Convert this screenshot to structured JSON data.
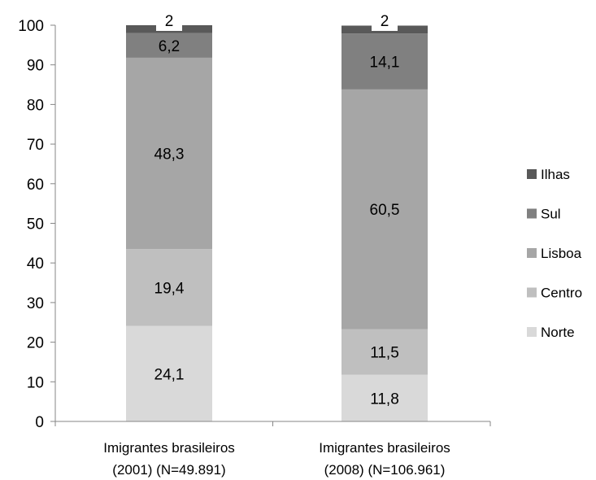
{
  "chart_data": {
    "type": "bar",
    "stacked": true,
    "categories": [
      [
        "Imigrantes brasileiros",
        "(2001) (N=49.891)"
      ],
      [
        "Imigrantes brasileiros",
        "(2008) (N=106.961)"
      ]
    ],
    "series": [
      {
        "name": "Norte",
        "color": "#d9d9d9",
        "values": [
          24.1,
          11.8
        ],
        "labels": [
          "24,1",
          "11,8"
        ]
      },
      {
        "name": "Centro",
        "color": "#bfbfbf",
        "values": [
          19.4,
          11.5
        ],
        "labels": [
          "19,4",
          "11,5"
        ]
      },
      {
        "name": "Lisboa",
        "color": "#a6a6a6",
        "values": [
          48.3,
          60.5
        ],
        "labels": [
          "48,3",
          "60,5"
        ]
      },
      {
        "name": "Sul",
        "color": "#808080",
        "values": [
          6.2,
          14.1
        ],
        "labels": [
          "6,2",
          "14,1"
        ]
      },
      {
        "name": "Ilhas",
        "color": "#595959",
        "values": [
          2,
          2
        ],
        "labels": [
          "2",
          "2"
        ]
      }
    ],
    "ylim": [
      0,
      100
    ],
    "yticks": [
      0,
      10,
      20,
      30,
      40,
      50,
      60,
      70,
      80,
      90,
      100
    ],
    "legend_position": "right",
    "legend_order": [
      "Ilhas",
      "Sul",
      "Lisboa",
      "Centro",
      "Norte"
    ],
    "grid": false
  }
}
